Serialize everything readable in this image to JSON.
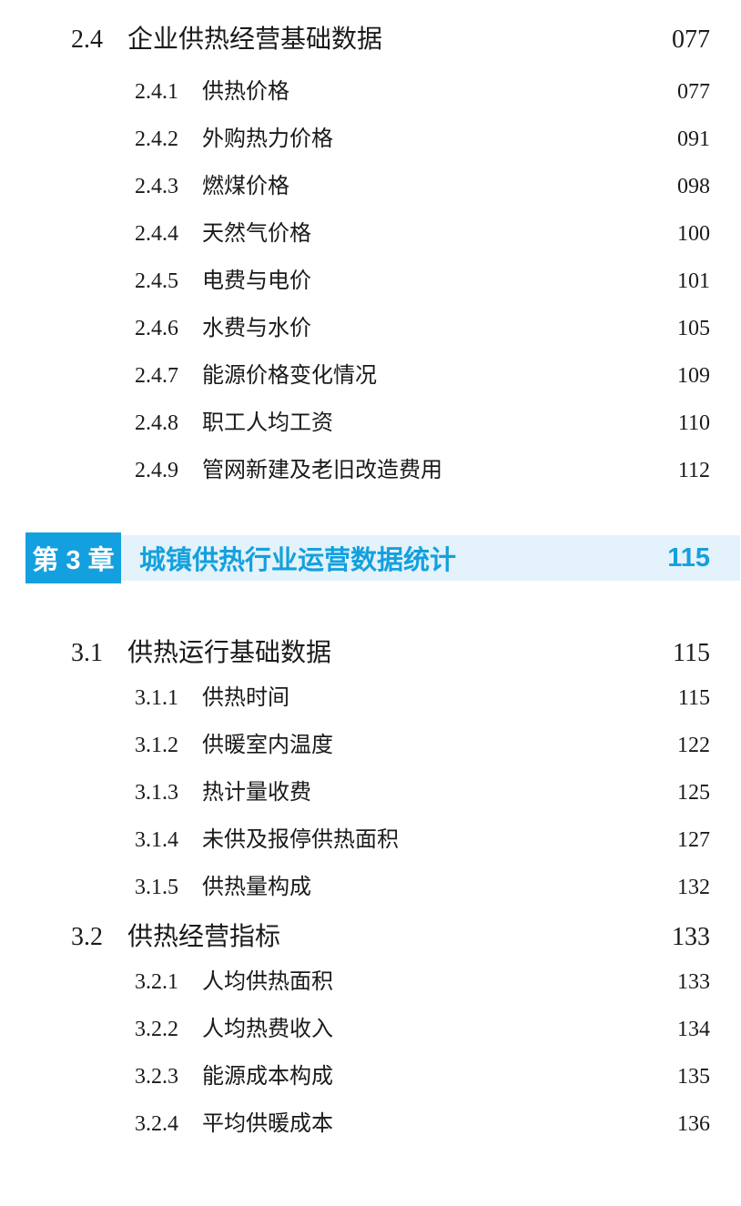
{
  "colors": {
    "accent_blue": "#14a0de",
    "band_bg": "#e3f2fb",
    "body_text": "#1a1a1a",
    "chapter_box_text": "#ffffff"
  },
  "entries": [
    {
      "kind": "section",
      "number": "2.4",
      "title": "企业供热经营基础数据",
      "page": "077"
    },
    {
      "kind": "sub",
      "number": "2.4.1",
      "title": "供热价格",
      "page": "077"
    },
    {
      "kind": "sub",
      "number": "2.4.2",
      "title": "外购热力价格",
      "page": "091"
    },
    {
      "kind": "sub",
      "number": "2.4.3",
      "title": "燃煤价格",
      "page": "098"
    },
    {
      "kind": "sub",
      "number": "2.4.4",
      "title": "天然气价格",
      "page": "100"
    },
    {
      "kind": "sub",
      "number": "2.4.5",
      "title": "电费与电价",
      "page": "101"
    },
    {
      "kind": "sub",
      "number": "2.4.6",
      "title": "水费与水价",
      "page": "105"
    },
    {
      "kind": "sub",
      "number": "2.4.7",
      "title": "能源价格变化情况",
      "page": "109"
    },
    {
      "kind": "sub",
      "number": "2.4.8",
      "title": "职工人均工资",
      "page": "110"
    },
    {
      "kind": "sub",
      "number": "2.4.9",
      "title": "管网新建及老旧改造费用",
      "page": "112"
    },
    {
      "kind": "chapter",
      "label": "第 3 章",
      "title": "城镇供热行业运营数据统计",
      "page": "115"
    },
    {
      "kind": "section",
      "number": "3.1",
      "title": "供热运行基础数据",
      "page": "115"
    },
    {
      "kind": "sub",
      "number": "3.1.1",
      "title": "供热时间",
      "page": "115"
    },
    {
      "kind": "sub",
      "number": "3.1.2",
      "title": "供暖室内温度",
      "page": "122"
    },
    {
      "kind": "sub",
      "number": "3.1.3",
      "title": "热计量收费",
      "page": "125"
    },
    {
      "kind": "sub",
      "number": "3.1.4",
      "title": "未供及报停供热面积",
      "page": "127"
    },
    {
      "kind": "sub",
      "number": "3.1.5",
      "title": "供热量构成",
      "page": "132"
    },
    {
      "kind": "section",
      "number": "3.2",
      "title": "供热经营指标",
      "page": "133"
    },
    {
      "kind": "sub",
      "number": "3.2.1",
      "title": "人均供热面积",
      "page": "133"
    },
    {
      "kind": "sub",
      "number": "3.2.2",
      "title": "人均热费收入",
      "page": "134"
    },
    {
      "kind": "sub",
      "number": "3.2.3",
      "title": "能源成本构成",
      "page": "135"
    },
    {
      "kind": "sub",
      "number": "3.2.4",
      "title": "平均供暖成本",
      "page": "136"
    }
  ]
}
